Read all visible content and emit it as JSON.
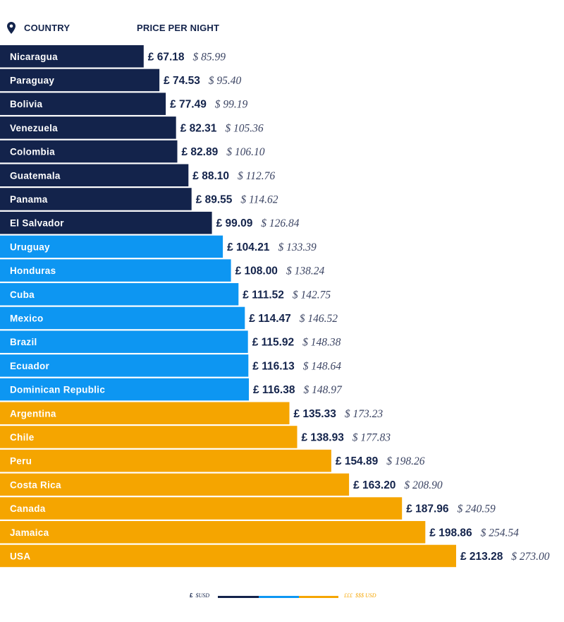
{
  "header": {
    "country_label": "COUNTRY",
    "price_label": "PRICE PER NIGHT",
    "pin_icon": "map-pin-icon"
  },
  "colors": {
    "tier1": "#13234b",
    "tier2": "#0d96f2",
    "tier3": "#f5a500"
  },
  "legend": {
    "left_gbp": "£",
    "left_usd": "$USD",
    "right_gbp": "£££",
    "right_usd": "$$$ USD"
  },
  "chart_data": {
    "type": "bar",
    "orientation": "horizontal",
    "xlim": [
      0,
      215
    ],
    "categories": [
      "Nicaragua",
      "Paraguay",
      "Bolivia",
      "Venezuela",
      "Colombia",
      "Guatemala",
      "Panama",
      "El Salvador",
      "Uruguay",
      "Honduras",
      "Cuba",
      "Mexico",
      "Brazil",
      "Ecuador",
      "Dominican Republic",
      "Argentina",
      "Chile",
      "Peru",
      "Costa Rica",
      "Canada",
      "Jamaica",
      "USA"
    ],
    "gbp": [
      67.18,
      74.53,
      77.49,
      82.31,
      82.89,
      88.1,
      89.55,
      99.09,
      104.21,
      108.0,
      111.52,
      114.47,
      115.92,
      116.13,
      116.38,
      135.33,
      138.93,
      154.89,
      163.2,
      187.96,
      198.86,
      213.28
    ],
    "gbp_labels": [
      "£ 67.18",
      "£ 74.53",
      "£ 77.49",
      "£ 82.31",
      "£ 82.89",
      "£ 88.10",
      "£ 89.55",
      "£ 99.09",
      "£ 104.21",
      "£ 108.00",
      "£ 111.52",
      "£ 114.47",
      "£ 115.92",
      "£ 116.13",
      "£ 116.38",
      "£ 135.33",
      "£ 138.93",
      "£ 154.89",
      "£ 163.20",
      "£ 187.96",
      "£ 198.86",
      "£ 213.28"
    ],
    "usd_labels": [
      "$ 85.99",
      "$ 95.40",
      "$ 99.19",
      "$ 105.36",
      "$ 106.10",
      "$ 112.76",
      "$ 114.62",
      "$ 126.84",
      "$ 133.39",
      "$ 138.24",
      "$ 142.75",
      "$ 146.52",
      "$ 148.38",
      "$ 148.64",
      "$ 148.97",
      "$ 173.23",
      "$ 177.83",
      "$ 198.26",
      "$ 208.90",
      "$ 240.59",
      "$ 254.54",
      "$ 273.00"
    ],
    "tiers": [
      1,
      1,
      1,
      1,
      1,
      1,
      1,
      1,
      2,
      2,
      2,
      2,
      2,
      2,
      2,
      3,
      3,
      3,
      3,
      3,
      3,
      3
    ]
  }
}
